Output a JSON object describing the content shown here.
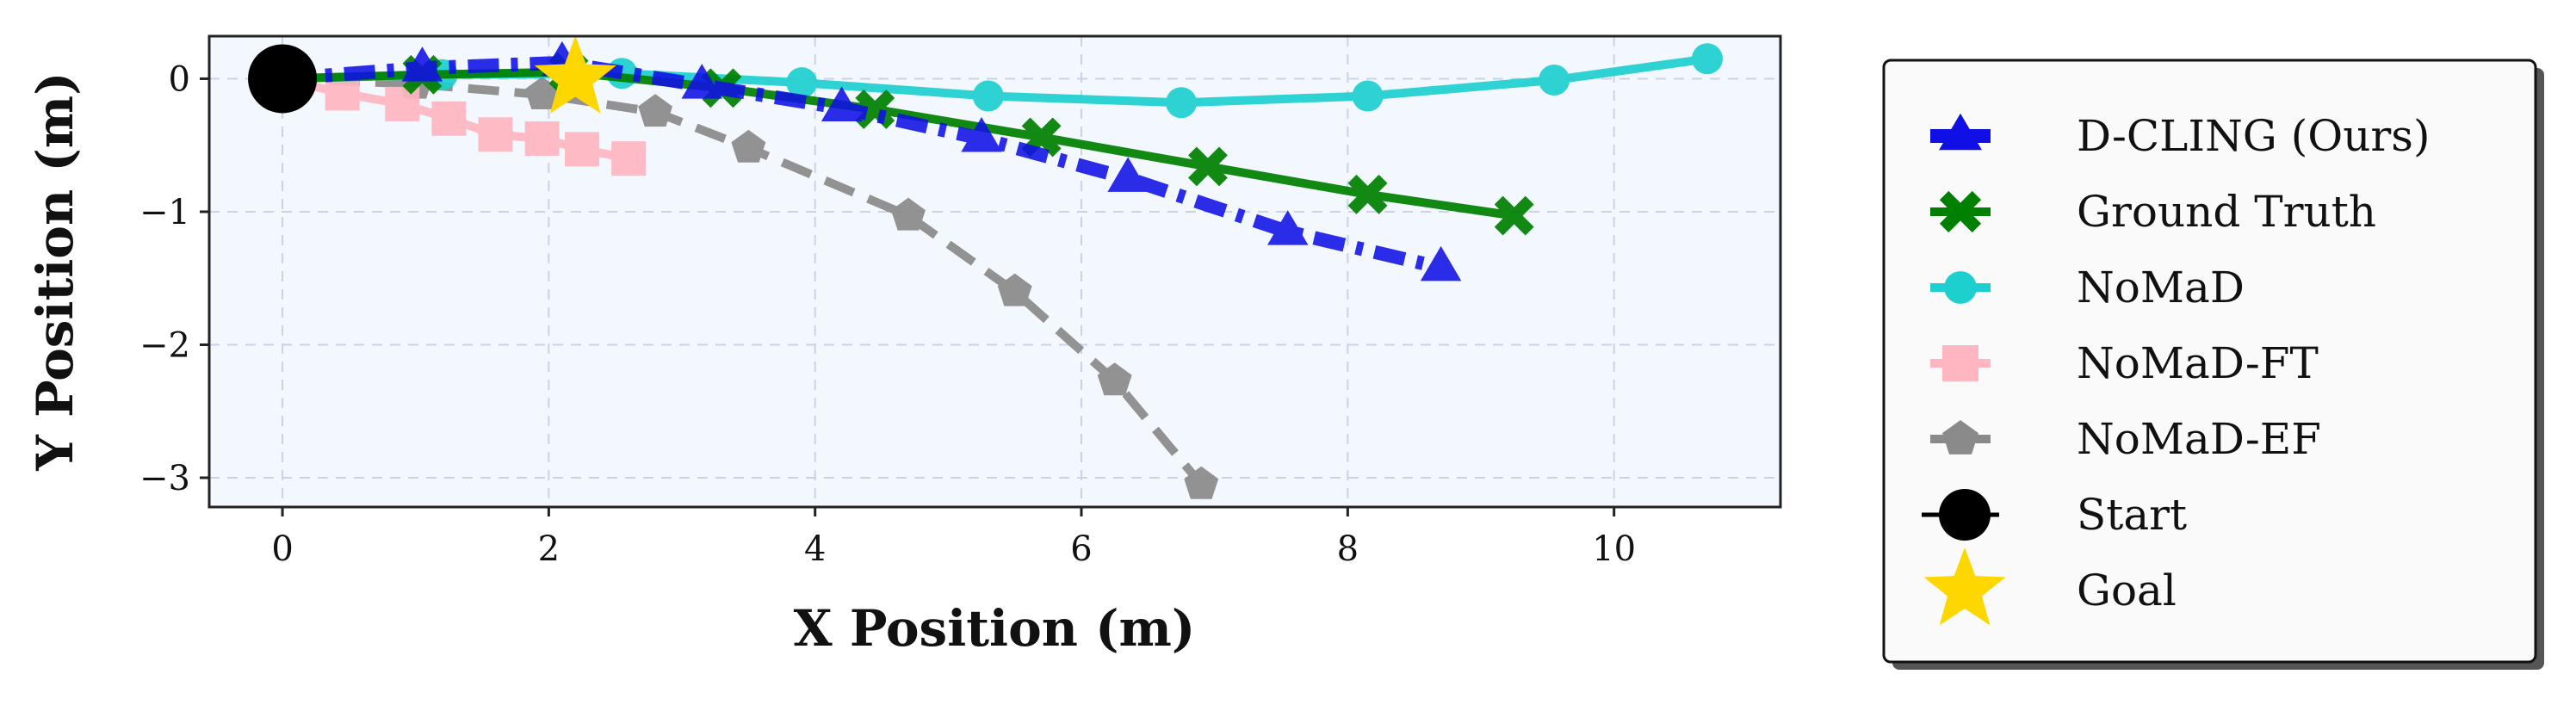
{
  "chart_data": {
    "type": "line",
    "xlabel": "X Position (m)",
    "ylabel": "Y Position (m)",
    "xlim": [
      -0.55,
      11.25
    ],
    "ylim": [
      -3.22,
      0.32
    ],
    "xticks": [
      0,
      2,
      4,
      6,
      8,
      10
    ],
    "yticks": [
      0,
      -1,
      -2,
      -3
    ],
    "xtick_labels": [
      "0",
      "2",
      "4",
      "6",
      "8",
      "10"
    ],
    "ytick_labels": [
      "0",
      "−1",
      "−2",
      "−3"
    ],
    "grid": true,
    "legend_position": "right",
    "background_color": "#f3f8fe",
    "series": [
      {
        "name": "D-CLING (Ours)",
        "color": "#1010e6",
        "line_style": "dashdot",
        "marker": "triangle",
        "x": [
          0.0,
          1.05,
          2.1,
          3.15,
          4.2,
          5.25,
          6.35,
          7.55,
          8.7
        ],
        "y": [
          0.0,
          0.08,
          0.12,
          -0.05,
          -0.22,
          -0.45,
          -0.75,
          -1.15,
          -1.42
        ]
      },
      {
        "name": "Ground Truth",
        "color": "#008000",
        "line_style": "solid",
        "marker": "x",
        "x": [
          0.0,
          1.05,
          2.15,
          3.3,
          4.45,
          5.7,
          6.95,
          8.15,
          9.25
        ],
        "y": [
          0.0,
          0.03,
          0.05,
          -0.07,
          -0.23,
          -0.44,
          -0.66,
          -0.87,
          -1.03
        ]
      },
      {
        "name": "NoMaD",
        "color": "#1ecfcf",
        "line_style": "solid",
        "marker": "circle",
        "x": [
          0.0,
          1.2,
          2.55,
          3.9,
          5.3,
          6.75,
          8.15,
          9.55,
          10.7
        ],
        "y": [
          0.0,
          0.03,
          0.04,
          -0.03,
          -0.13,
          -0.18,
          -0.13,
          -0.01,
          0.15
        ]
      },
      {
        "name": "NoMaD-FT",
        "color": "#ffb6c1",
        "line_style": "solid",
        "marker": "square",
        "x": [
          0.0,
          0.45,
          0.9,
          1.25,
          1.6,
          1.95,
          2.25,
          2.6
        ],
        "y": [
          0.0,
          -0.11,
          -0.19,
          -0.3,
          -0.42,
          -0.45,
          -0.53,
          -0.6
        ]
      },
      {
        "name": "NoMaD-EF",
        "color": "#8a8a8a",
        "line_style": "dashed",
        "marker": "pentagon",
        "x": [
          0.0,
          1.0,
          1.95,
          2.8,
          3.5,
          4.7,
          5.5,
          6.25,
          6.9
        ],
        "y": [
          0.0,
          -0.04,
          -0.12,
          -0.25,
          -0.52,
          -1.03,
          -1.6,
          -2.27,
          -3.05
        ]
      }
    ],
    "start": {
      "name": "Start",
      "x": 0.0,
      "y": 0.0,
      "color": "#000000"
    },
    "goal": {
      "name": "Goal",
      "x": 2.2,
      "y": 0.0,
      "color": "#ffd700"
    }
  }
}
